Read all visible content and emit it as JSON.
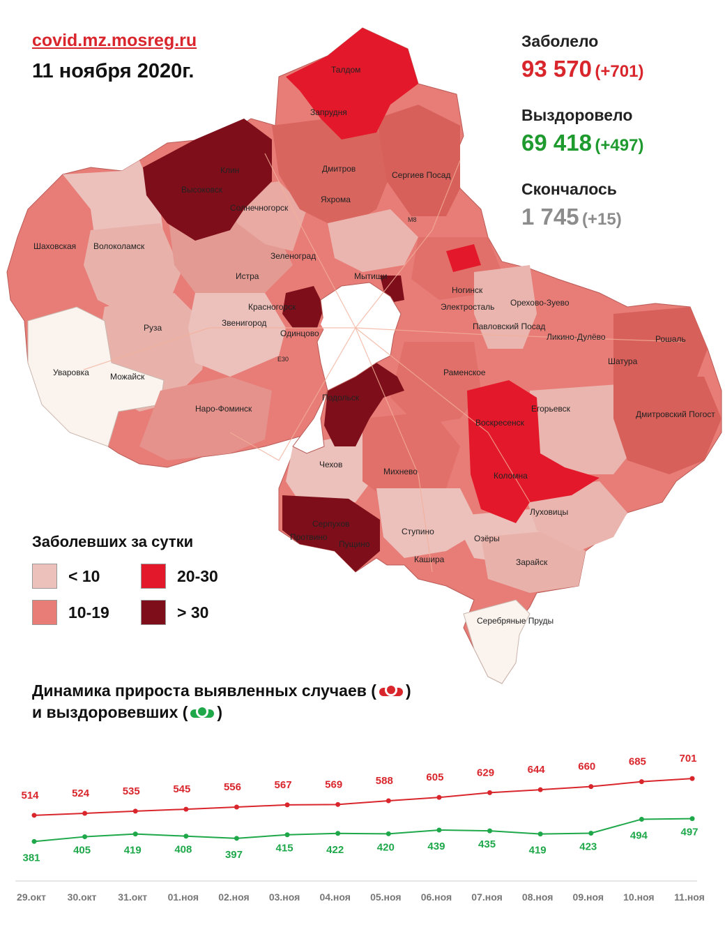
{
  "header": {
    "site": "covid.mz.mosreg.ru",
    "date": "11 ноября 2020г."
  },
  "stats": {
    "sick": {
      "label": "Заболело",
      "value": "93 570",
      "delta": "(+701)",
      "color": "#d9262c"
    },
    "recovered": {
      "label": "Выздоровело",
      "value": "69 418",
      "delta": "(+497)",
      "color": "#1e9a2e"
    },
    "died": {
      "label": "Скончалось",
      "value": "1 745",
      "delta": "(+15)",
      "color": "#8c8c8c"
    }
  },
  "legend": {
    "title": "Заболевших за сутки",
    "items": [
      {
        "label": "< 10",
        "color": "#ecc0bb"
      },
      {
        "label": "20-30",
        "color": "#e3192b"
      },
      {
        "label": "10-19",
        "color": "#e87d78"
      },
      {
        "label": "> 30",
        "color": "#7e0f1a"
      }
    ]
  },
  "map": {
    "labels": [
      "Талдом",
      "Запрудня",
      "Дмитров",
      "Сергиев Посад",
      "Клин",
      "Высоковск",
      "Яхрома",
      "Солнечногорск",
      "Шаховская",
      "Волоколамск",
      "Зеленоград",
      "Истра",
      "Мытищи",
      "Ногинск",
      "Электросталь",
      "Орехово-Зуево",
      "Красногорск",
      "Звенигород",
      "Руза",
      "Одинцово",
      "Павловский Посад",
      "Ликино-Дулёво",
      "Рошаль",
      "Уваровка",
      "Можайск",
      "Раменское",
      "Шатура",
      "Наро-Фоминск",
      "Подольск",
      "Егорьевск",
      "Воскресенск",
      "Дмитровский Погост",
      "Чехов",
      "Михнево",
      "Коломна",
      "Серпухов",
      "Протвино",
      "Пущино",
      "Ступино",
      "Луховицы",
      "Озёры",
      "Кашира",
      "Зарайск",
      "Серебряные Пруды",
      "М8",
      "E30"
    ]
  },
  "chart_title": {
    "line1_text": "Динамика прироста выявленных случаев (",
    "line1_end": ")",
    "line2_text": "и выздоровевших (",
    "line2_end": ")"
  },
  "chart_data": {
    "type": "line",
    "x": [
      "29.окт",
      "30.окт",
      "31.окт",
      "01.ноя",
      "02.ноя",
      "03.ноя",
      "04.ноя",
      "05.ноя",
      "06.ноя",
      "07.ноя",
      "08.ноя",
      "09.ноя",
      "10.ноя",
      "11.ноя"
    ],
    "series": [
      {
        "color": "#d9262c",
        "values": [
          514,
          524,
          535,
          545,
          556,
          567,
          569,
          588,
          605,
          629,
          644,
          660,
          685,
          701
        ]
      },
      {
        "color": "#1ea84a",
        "values": [
          381,
          405,
          419,
          408,
          397,
          415,
          422,
          420,
          439,
          435,
          419,
          423,
          494,
          497
        ]
      }
    ],
    "ylim": [
      180,
      900
    ],
    "grid": false
  }
}
